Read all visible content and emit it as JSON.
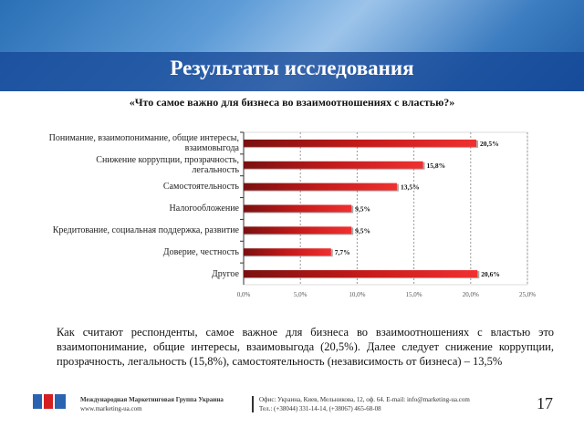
{
  "header": {
    "title": "Результаты исследования"
  },
  "subtitle": "«Что самое важно для бизнеса во взаимоотношениях с властью?»",
  "chart_data": {
    "type": "bar",
    "orientation": "horizontal",
    "categories": [
      "Понимание, взаимопонимание, общие интересы, взаимовыгода",
      "Снижение коррупции, прозрачность, легальность",
      "Самостоятельность",
      "Налогообложение",
      "Кредитование, социальная поддержка, развитие",
      "Доверие, честность",
      "Другое"
    ],
    "values": [
      20.5,
      15.8,
      13.5,
      9.5,
      9.5,
      7.7,
      20.6
    ],
    "value_labels": [
      "20,5%",
      "15,8%",
      "13,5%",
      "9,5%",
      "9,5%",
      "7,7%",
      "20,6%"
    ],
    "color": "#d42020",
    "xlim": [
      0,
      25
    ],
    "xticks": [
      {
        "value": 0,
        "label": "0,0%"
      },
      {
        "value": 5,
        "label": "5,0%"
      },
      {
        "value": 10,
        "label": "10,0%"
      },
      {
        "value": 15,
        "label": "15,0%"
      },
      {
        "value": 20,
        "label": "20,0%"
      },
      {
        "value": 25,
        "label": "25,0%"
      }
    ],
    "grid": true
  },
  "paragraph": "Как считают респонденты, самое важное для бизнеса во взаимоотношениях с властью это взаимопонимание, общие интересы, взаимовыгода (20,5%). Далее следует снижение коррупции, прозрачность, легальность (15,8%), самостоятельность (независимость от бизнеса) – 13,5%",
  "footer": {
    "company": "Международная Маркетинговая Группа Украина",
    "website": "www.marketing-ua.com",
    "address": "Офис: Украина, Киев, Мельникова, 12, оф. 64. E-mail: info@marketing-ua.com",
    "phone": "Тел.: (+38044) 331-14-14, (+38067) 465-68-08",
    "page_number": "17"
  }
}
